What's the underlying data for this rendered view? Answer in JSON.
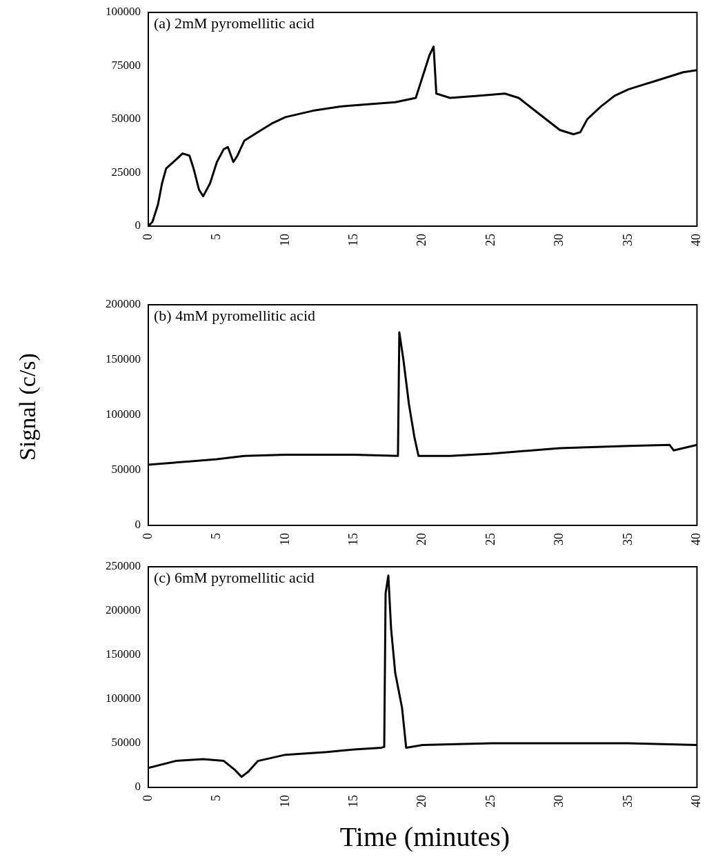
{
  "chart_data": [
    {
      "type": "line",
      "annotations": [
        "(a) 2mM pyromellitic acid"
      ],
      "xlim": [
        0,
        40
      ],
      "xticks": [
        0,
        5,
        10,
        15,
        20,
        25,
        30,
        35,
        40
      ],
      "ylim": [
        0,
        100000
      ],
      "yticks": [
        0,
        25000,
        50000,
        75000,
        100000
      ],
      "series": [
        {
          "color": "#000000",
          "x": [
            0,
            0.3,
            0.7,
            1,
            1.3,
            2,
            2.5,
            3,
            3.3,
            3.7,
            4,
            4.5,
            5,
            5.5,
            5.8,
            6.2,
            6.5,
            7,
            8,
            9,
            10,
            12,
            14,
            16,
            18,
            19.5,
            20,
            20.5,
            20.8,
            21,
            22,
            24,
            26,
            27,
            28,
            29,
            30,
            31,
            31.5,
            32,
            33,
            34,
            35,
            36,
            37,
            38,
            39,
            40
          ],
          "values": [
            0,
            2000,
            10000,
            20000,
            27000,
            31000,
            34000,
            33000,
            27000,
            17000,
            14000,
            20000,
            30000,
            36000,
            37000,
            30000,
            33000,
            40000,
            44000,
            48000,
            51000,
            54000,
            56000,
            57000,
            58000,
            60000,
            70000,
            80000,
            84000,
            62000,
            60000,
            61000,
            62000,
            60000,
            55000,
            50000,
            45000,
            43000,
            44000,
            50000,
            56000,
            61000,
            64000,
            66000,
            68000,
            70000,
            72000,
            73000
          ]
        }
      ]
    },
    {
      "type": "line",
      "annotations": [
        "(b) 4mM pyromellitic acid"
      ],
      "ylabel": "Signal (c/s)",
      "xlim": [
        0,
        40
      ],
      "xticks": [
        0,
        5,
        10,
        15,
        20,
        25,
        30,
        35,
        40
      ],
      "ylim": [
        0,
        200000
      ],
      "yticks": [
        0,
        50000,
        100000,
        150000,
        200000
      ],
      "series": [
        {
          "color": "#000000",
          "x": [
            0,
            3,
            5,
            7,
            10,
            15,
            18.2,
            18.3,
            18.6,
            19,
            19.4,
            19.7,
            22,
            25,
            30,
            35,
            38,
            38.3,
            40
          ],
          "values": [
            55000,
            58000,
            60000,
            63000,
            64000,
            64000,
            63000,
            175000,
            150000,
            110000,
            80000,
            63000,
            63000,
            65000,
            70000,
            72000,
            73000,
            68000,
            73000
          ]
        }
      ]
    },
    {
      "type": "line",
      "annotations": [
        "(c) 6mM pyromellitic acid"
      ],
      "xlabel": "Time (minutes)",
      "xlim": [
        0,
        40
      ],
      "xticks": [
        0,
        5,
        10,
        15,
        20,
        25,
        30,
        35,
        40
      ],
      "ylim": [
        0,
        250000
      ],
      "yticks": [
        0,
        50000,
        100000,
        150000,
        200000,
        250000
      ],
      "series": [
        {
          "color": "#000000",
          "x": [
            0,
            2,
            4,
            5.5,
            6.3,
            6.8,
            7.3,
            8,
            10,
            13,
            15,
            17,
            17.2,
            17.3,
            17.5,
            17.7,
            18,
            18.5,
            18.8,
            20,
            25,
            30,
            35,
            40
          ],
          "values": [
            22000,
            30000,
            32000,
            30000,
            20000,
            12000,
            18000,
            30000,
            37000,
            40000,
            43000,
            45000,
            46000,
            220000,
            240000,
            180000,
            130000,
            90000,
            45000,
            48000,
            50000,
            50000,
            50000,
            48000
          ]
        }
      ]
    }
  ]
}
